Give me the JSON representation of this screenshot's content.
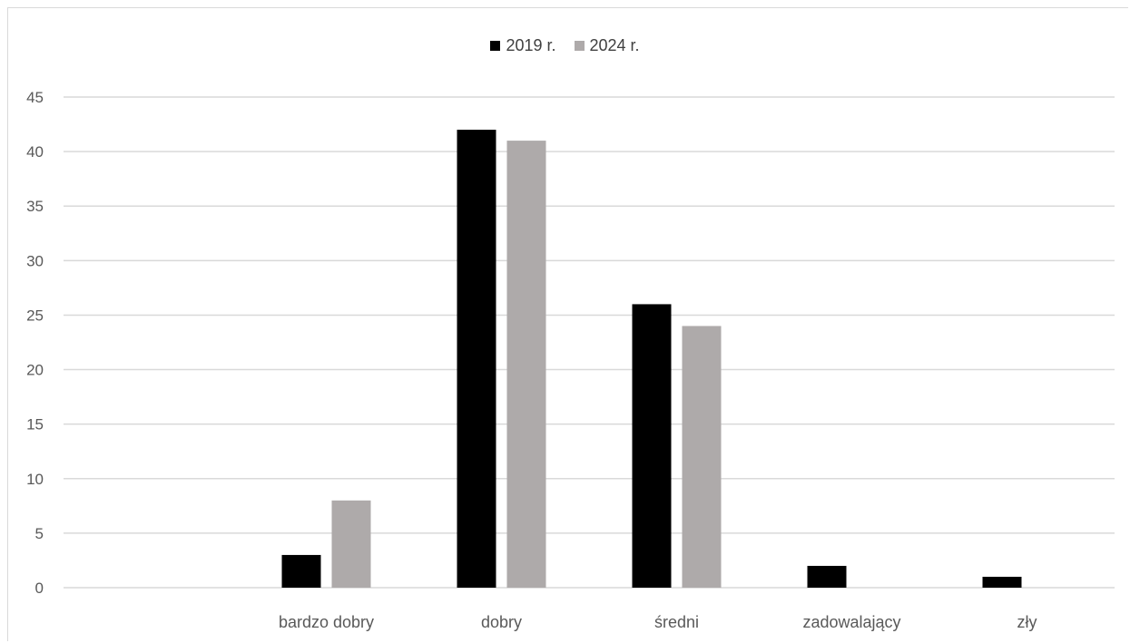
{
  "chart_data": {
    "type": "bar",
    "title": "",
    "xlabel": "",
    "ylabel": "",
    "categories": [
      "",
      "bardzo dobry",
      "dobry",
      "średni",
      "zadowalający",
      "zły"
    ],
    "series": [
      {
        "name": "2019 r.",
        "color": "#000000",
        "values": [
          0,
          3,
          42,
          26,
          2,
          1
        ]
      },
      {
        "name": "2024 r.",
        "color": "#aeaaaa",
        "values": [
          0,
          8,
          41,
          24,
          0,
          0
        ]
      }
    ],
    "ylim": [
      0,
      45
    ],
    "yticks": [
      0,
      5,
      10,
      15,
      20,
      25,
      30,
      35,
      40,
      45
    ],
    "grid": true,
    "legend_position": "top"
  }
}
